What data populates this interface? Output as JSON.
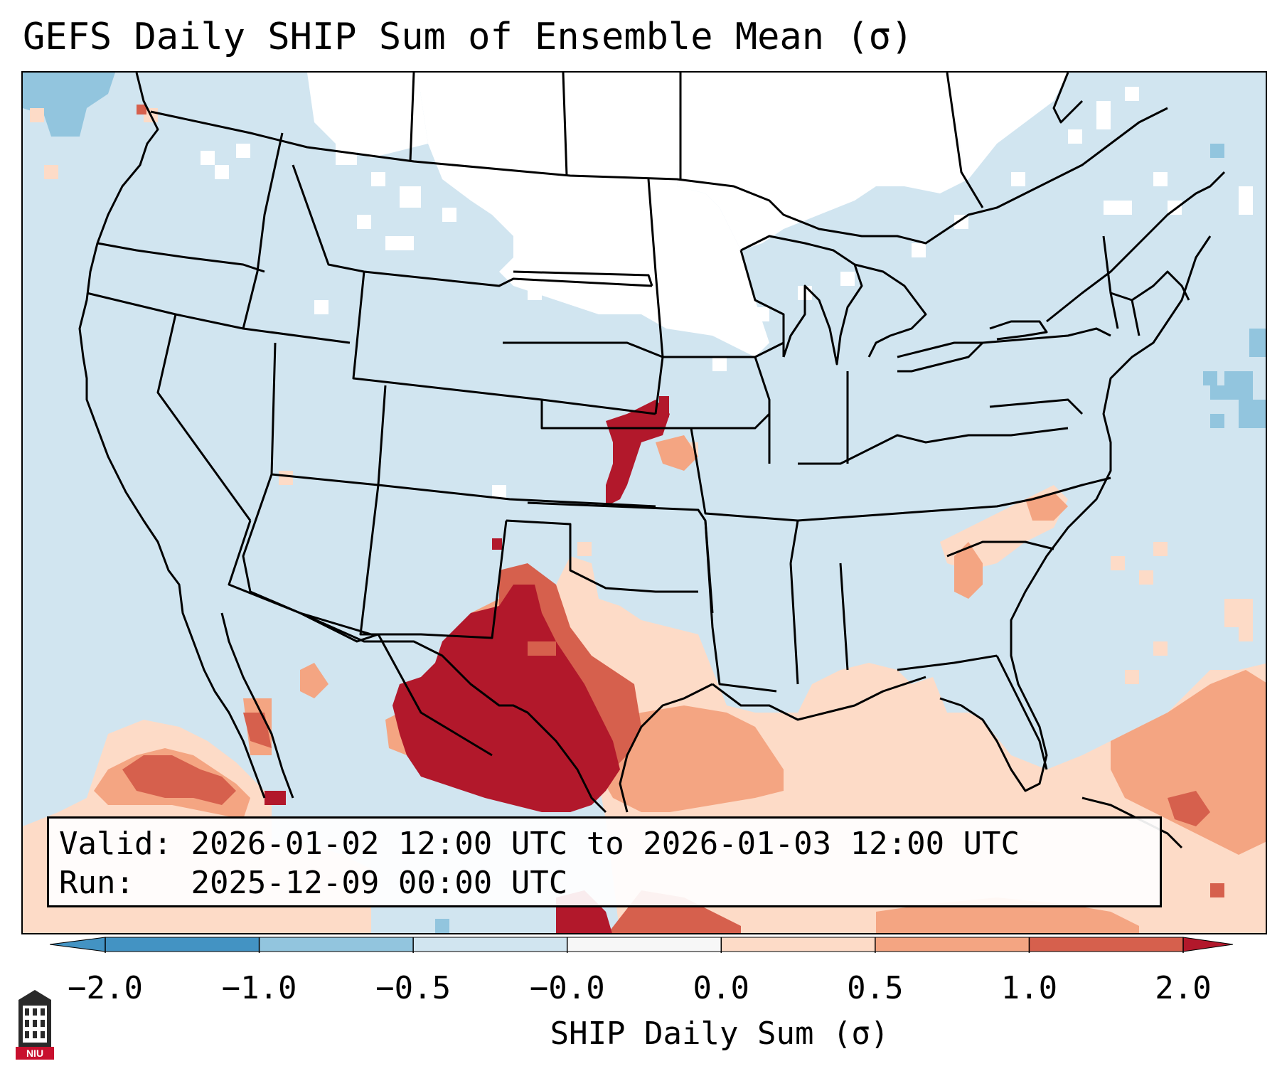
{
  "header": {
    "title": "GEFS Daily SHIP Sum of Ensemble Mean (σ)"
  },
  "info": {
    "valid_label": "Valid:",
    "valid_value": "2026-01-02 12:00 UTC to 2026-01-03 12:00 UTC",
    "run_label": "Run:",
    "run_value": "2025-12-09 00:00 UTC"
  },
  "colorbar": {
    "label": "SHIP Daily Sum (σ)",
    "ticks": [
      "−2.0",
      "−1.0",
      "−0.5",
      "−0.0",
      "0.0",
      "0.5",
      "1.0",
      "2.0"
    ],
    "colors": [
      "#4393c3",
      "#92c5de",
      "#d1e5f0",
      "#f7f7f7",
      "#fddbc7",
      "#f4a582",
      "#d6604d",
      "#b2182b"
    ]
  },
  "palette": {
    "ocean": "#d1e5f0",
    "neutral": "#ffffff",
    "light_blue": "#92c5de",
    "light_red": "#fddbc7",
    "mid_red": "#f4a582",
    "red": "#d6604d",
    "dark_red": "#b2182b",
    "border": "#000000"
  },
  "logo": {
    "text": "NIU",
    "icon": "university-building-icon"
  }
}
